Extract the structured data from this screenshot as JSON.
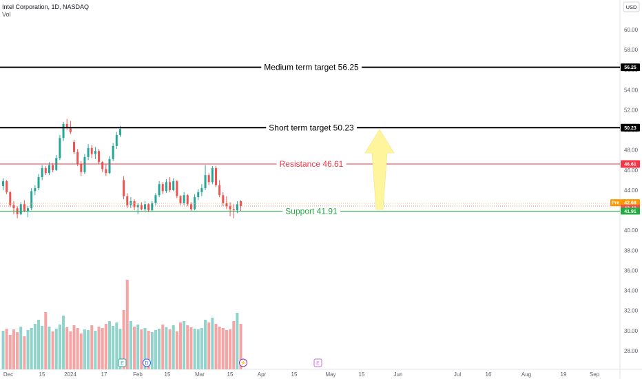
{
  "header": {
    "symbol_line": "Intel Corporation, 1D, NASDAQ",
    "indicator": "Vol"
  },
  "price_axis": {
    "currency_button": "USD",
    "ticks": [
      "60.00",
      "58.00",
      "56.00",
      "54.00",
      "52.00",
      "50.00",
      "48.00",
      "46.00",
      "44.00",
      "42.00",
      "40.00",
      "38.00",
      "36.00",
      "34.00",
      "32.00",
      "30.00",
      "28.00"
    ]
  },
  "time_axis": {
    "labels": [
      "Dec",
      "15",
      "2024",
      "17",
      "Feb",
      "15",
      "Mar",
      "15",
      "Apr",
      "15",
      "May",
      "15",
      "Jun",
      "Jul",
      "16",
      "Aug",
      "19",
      "Sep"
    ]
  },
  "price_tags": {
    "medium": "56.25",
    "short": "50.23",
    "resistance": "46.61",
    "pre_label": "Pre",
    "pre": "42.68",
    "last": "42.42",
    "support": "41.91"
  },
  "levels": {
    "medium_label": "Medium term target 56.25",
    "short_label": "Short term target 50.23",
    "resistance_label": "Resistance 46.61",
    "support_label": "Support 41.91"
  },
  "events": [
    {
      "name": "earnings-marker",
      "letter": "E"
    },
    {
      "name": "dividend-marker",
      "letter": "D"
    },
    {
      "name": "split-marker",
      "letter": "⚡"
    },
    {
      "name": "upcoming-earnings-marker",
      "letter": "E"
    }
  ],
  "colors": {
    "up": "#26a69a",
    "down": "#ef5350",
    "vol_up": "#8fd3cb",
    "vol_down": "#f5a3a3",
    "resistance": "#f23645",
    "support": "#22ab3e",
    "target": "#000000",
    "arrow": "#fff59d",
    "pre_tag": "#ff9800"
  },
  "chart_data": {
    "type": "candlestick",
    "title": "Intel Corporation, 1D, NASDAQ",
    "ylim": [
      26.5,
      61.5
    ],
    "levels": [
      {
        "name": "Medium term target",
        "value": 56.25
      },
      {
        "name": "Short term target",
        "value": 50.23
      },
      {
        "name": "Resistance",
        "value": 46.61
      },
      {
        "name": "Support",
        "value": 41.91
      }
    ],
    "candles": [
      {
        "o": 44.4,
        "h": 45.2,
        "l": 44.0,
        "c": 44.9
      },
      {
        "o": 44.9,
        "h": 45.0,
        "l": 43.6,
        "c": 43.8
      },
      {
        "o": 43.8,
        "h": 43.9,
        "l": 42.3,
        "c": 42.5
      },
      {
        "o": 42.5,
        "h": 42.9,
        "l": 41.6,
        "c": 42.2
      },
      {
        "o": 42.2,
        "h": 42.4,
        "l": 41.2,
        "c": 41.6
      },
      {
        "o": 41.6,
        "h": 42.8,
        "l": 41.5,
        "c": 42.6
      },
      {
        "o": 42.6,
        "h": 43.0,
        "l": 41.8,
        "c": 41.9
      },
      {
        "o": 41.9,
        "h": 42.4,
        "l": 41.3,
        "c": 42.2
      },
      {
        "o": 42.2,
        "h": 44.2,
        "l": 42.0,
        "c": 43.9
      },
      {
        "o": 43.9,
        "h": 44.5,
        "l": 43.5,
        "c": 44.2
      },
      {
        "o": 44.2,
        "h": 45.6,
        "l": 44.0,
        "c": 45.3
      },
      {
        "o": 45.3,
        "h": 46.5,
        "l": 45.0,
        "c": 46.2
      },
      {
        "o": 46.2,
        "h": 46.4,
        "l": 45.5,
        "c": 45.7
      },
      {
        "o": 45.7,
        "h": 46.8,
        "l": 45.5,
        "c": 46.5
      },
      {
        "o": 46.5,
        "h": 46.7,
        "l": 45.8,
        "c": 46.0
      },
      {
        "o": 46.0,
        "h": 47.5,
        "l": 45.9,
        "c": 47.2
      },
      {
        "o": 47.2,
        "h": 49.5,
        "l": 47.0,
        "c": 49.2
      },
      {
        "o": 49.2,
        "h": 50.8,
        "l": 48.9,
        "c": 50.6
      },
      {
        "o": 50.6,
        "h": 51.1,
        "l": 50.0,
        "c": 50.3
      },
      {
        "o": 50.3,
        "h": 50.9,
        "l": 49.6,
        "c": 49.8
      },
      {
        "o": 48.8,
        "h": 49.0,
        "l": 47.6,
        "c": 47.8
      },
      {
        "o": 47.8,
        "h": 48.1,
        "l": 46.4,
        "c": 46.6
      },
      {
        "o": 46.6,
        "h": 46.9,
        "l": 45.4,
        "c": 45.8
      },
      {
        "o": 45.8,
        "h": 47.6,
        "l": 45.6,
        "c": 47.3
      },
      {
        "o": 47.3,
        "h": 48.6,
        "l": 47.0,
        "c": 48.2
      },
      {
        "o": 48.2,
        "h": 48.5,
        "l": 47.2,
        "c": 47.6
      },
      {
        "o": 47.6,
        "h": 48.3,
        "l": 47.1,
        "c": 47.9
      },
      {
        "o": 47.9,
        "h": 48.1,
        "l": 46.6,
        "c": 46.8
      },
      {
        "o": 46.8,
        "h": 46.9,
        "l": 45.8,
        "c": 46.1
      },
      {
        "o": 46.1,
        "h": 46.6,
        "l": 45.4,
        "c": 45.7
      },
      {
        "o": 45.7,
        "h": 47.4,
        "l": 45.6,
        "c": 47.1
      },
      {
        "o": 47.1,
        "h": 48.7,
        "l": 46.9,
        "c": 48.4
      },
      {
        "o": 48.4,
        "h": 49.8,
        "l": 48.1,
        "c": 49.5
      },
      {
        "o": 49.5,
        "h": 50.4,
        "l": 49.3,
        "c": 50.1
      },
      {
        "o": 45.0,
        "h": 45.4,
        "l": 43.1,
        "c": 43.4
      },
      {
        "o": 43.4,
        "h": 43.7,
        "l": 42.2,
        "c": 42.5
      },
      {
        "o": 42.5,
        "h": 43.3,
        "l": 42.2,
        "c": 42.9
      },
      {
        "o": 42.9,
        "h": 43.1,
        "l": 42.0,
        "c": 42.3
      },
      {
        "o": 42.3,
        "h": 42.7,
        "l": 41.6,
        "c": 42.5
      },
      {
        "o": 42.5,
        "h": 42.8,
        "l": 42.0,
        "c": 42.1
      },
      {
        "o": 42.1,
        "h": 42.9,
        "l": 41.9,
        "c": 42.6
      },
      {
        "o": 42.6,
        "h": 42.7,
        "l": 41.8,
        "c": 42.0
      },
      {
        "o": 42.0,
        "h": 42.9,
        "l": 41.9,
        "c": 42.7
      },
      {
        "o": 42.7,
        "h": 43.7,
        "l": 42.5,
        "c": 43.5
      },
      {
        "o": 43.5,
        "h": 44.9,
        "l": 43.3,
        "c": 44.6
      },
      {
        "o": 44.6,
        "h": 44.8,
        "l": 43.6,
        "c": 43.9
      },
      {
        "o": 43.9,
        "h": 45.1,
        "l": 43.7,
        "c": 44.8
      },
      {
        "o": 44.8,
        "h": 45.3,
        "l": 43.8,
        "c": 44.0
      },
      {
        "o": 44.0,
        "h": 45.2,
        "l": 43.9,
        "c": 44.9
      },
      {
        "o": 44.9,
        "h": 45.0,
        "l": 43.2,
        "c": 43.4
      },
      {
        "o": 43.4,
        "h": 43.5,
        "l": 42.5,
        "c": 42.7
      },
      {
        "o": 42.7,
        "h": 43.8,
        "l": 42.5,
        "c": 43.5
      },
      {
        "o": 43.5,
        "h": 43.6,
        "l": 42.4,
        "c": 42.6
      },
      {
        "o": 42.6,
        "h": 42.8,
        "l": 41.9,
        "c": 42.1
      },
      {
        "o": 42.1,
        "h": 43.6,
        "l": 42.0,
        "c": 43.3
      },
      {
        "o": 43.3,
        "h": 44.1,
        "l": 43.0,
        "c": 43.8
      },
      {
        "o": 43.8,
        "h": 44.6,
        "l": 43.4,
        "c": 44.2
      },
      {
        "o": 44.2,
        "h": 46.5,
        "l": 44.0,
        "c": 45.5
      },
      {
        "o": 45.5,
        "h": 45.7,
        "l": 44.5,
        "c": 44.8
      },
      {
        "o": 44.8,
        "h": 46.4,
        "l": 44.6,
        "c": 46.2
      },
      {
        "o": 46.2,
        "h": 46.4,
        "l": 44.3,
        "c": 44.5
      },
      {
        "o": 44.5,
        "h": 45.0,
        "l": 43.3,
        "c": 43.5
      },
      {
        "o": 43.5,
        "h": 43.8,
        "l": 42.4,
        "c": 42.7
      },
      {
        "o": 42.7,
        "h": 43.4,
        "l": 42.1,
        "c": 42.4
      },
      {
        "o": 42.4,
        "h": 42.8,
        "l": 41.4,
        "c": 42.1
      },
      {
        "o": 42.1,
        "h": 42.6,
        "l": 41.2,
        "c": 42.0
      },
      {
        "o": 42.0,
        "h": 42.9,
        "l": 41.7,
        "c": 42.6
      },
      {
        "o": 42.9,
        "h": 43.0,
        "l": 41.9,
        "c": 42.42
      }
    ],
    "volume": [
      56,
      59,
      50,
      58,
      54,
      62,
      48,
      57,
      60,
      66,
      72,
      63,
      83,
      62,
      55,
      59,
      65,
      78,
      61,
      55,
      64,
      60,
      52,
      58,
      57,
      64,
      56,
      62,
      60,
      66,
      70,
      63,
      68,
      59,
      86,
      130,
      70,
      62,
      65,
      58,
      60,
      56,
      54,
      57,
      59,
      65,
      61,
      58,
      64,
      55,
      68,
      70,
      64,
      61,
      59,
      58,
      60,
      72,
      68,
      75,
      66,
      62,
      60,
      57,
      58,
      70,
      82,
      66
    ],
    "volume_ylim": [
      0,
      140
    ]
  }
}
